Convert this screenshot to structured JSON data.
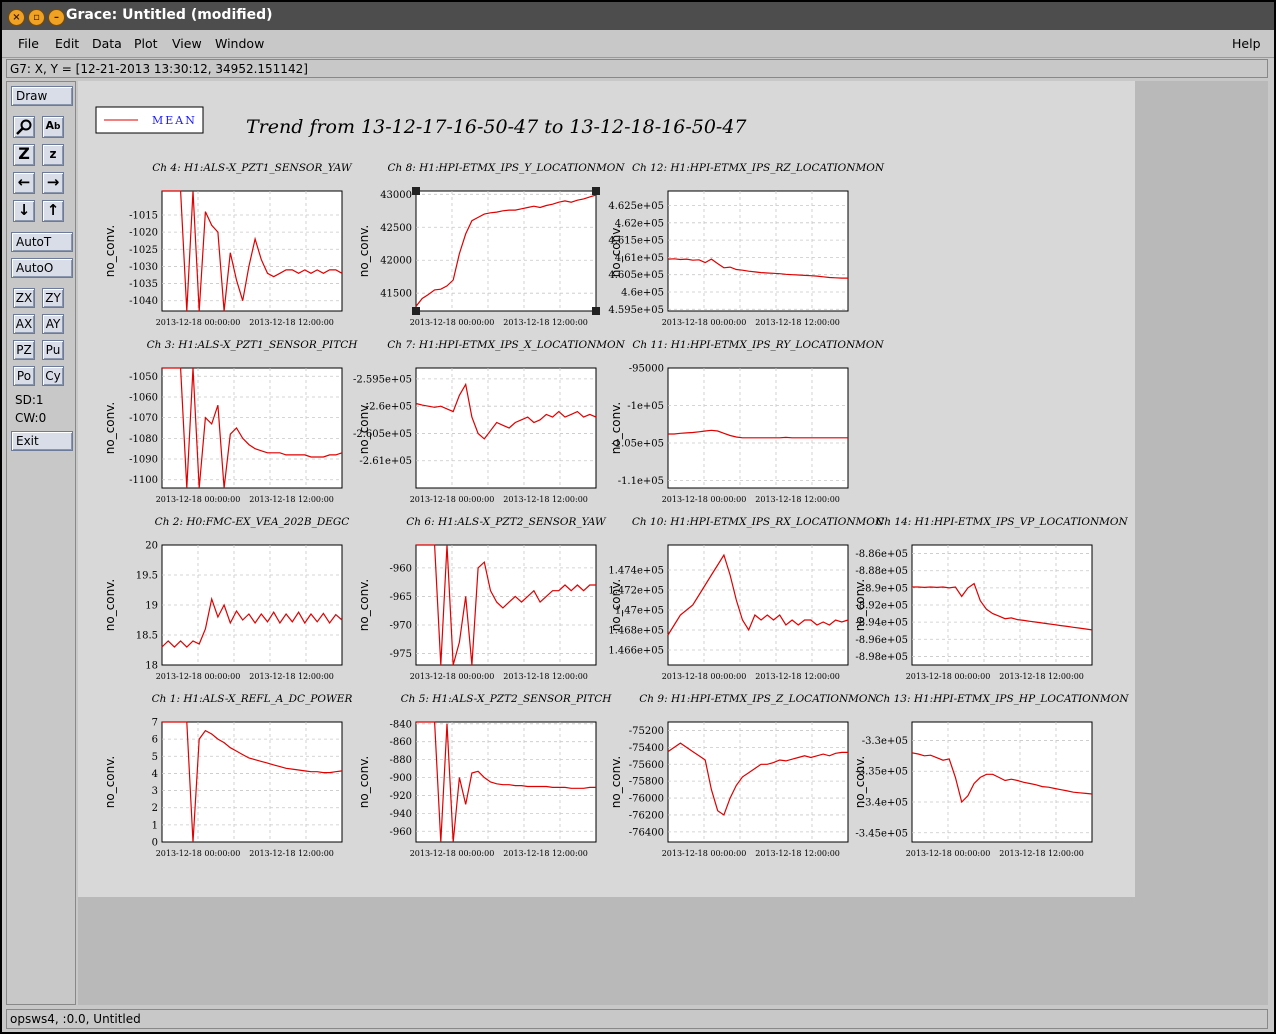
{
  "window": {
    "title": "Grace: Untitled (modified)"
  },
  "menubar": {
    "items": [
      "File",
      "Edit",
      "Data",
      "Plot",
      "View",
      "Window"
    ],
    "help": "Help"
  },
  "locator": {
    "text": "G7: X, Y = [12-21-2013 13:30:12, 34952.151142]"
  },
  "toolbar": {
    "draw": "Draw",
    "icons": [
      "zoom-icon",
      "text-icon",
      "zoom-in-icon",
      "zoom-out-icon",
      "left-arrow-icon",
      "right-arrow-icon",
      "down-arrow-icon",
      "up-arrow-icon"
    ],
    "autot": "AutoT",
    "autoo": "AutoO",
    "pairs": [
      [
        "ZX",
        "ZY"
      ],
      [
        "AX",
        "AY"
      ],
      [
        "PZ",
        "Pu"
      ],
      [
        "Po",
        "Cy"
      ]
    ],
    "sd": "SD:1",
    "cw": "CW:0",
    "exit": "Exit"
  },
  "statusbar": {
    "text": "opsws4, :0.0, Untitled"
  },
  "graph": {
    "title": "Trend from 13-12-17-16-50-47 to 13-12-18-16-50-47",
    "legend": "MEAN",
    "ylabel": "no_conv.",
    "line_color": "#e00000",
    "xticks": [
      "2013-12-18 00:00:00",
      "2013-12-18 12:00:00"
    ]
  },
  "chart_data": [
    {
      "type": "line",
      "title": "Ch 4: H1:ALS-X_PZT1_SENSOR_YAW",
      "ylabel": "no_conv.",
      "ylim": [
        -1043,
        -1008
      ],
      "yticks": [
        "-1015",
        "-1020",
        "-1025",
        "-1030",
        "-1035",
        "-1040"
      ],
      "xticks": [
        "2013-12-18 00:00:00",
        "2013-12-18 12:00:00"
      ],
      "series": [
        {
          "values": [
            -1008,
            -1008,
            -1008,
            -1008,
            -1043,
            -1008,
            -1043,
            -1014,
            -1018,
            -1020,
            -1043,
            -1026,
            -1034,
            -1040,
            -1030,
            -1022,
            -1028,
            -1032,
            -1033,
            -1032,
            -1031,
            -1031,
            -1032,
            -1031,
            -1032,
            -1031,
            -1032,
            -1031,
            -1031,
            -1032
          ]
        }
      ]
    },
    {
      "type": "line",
      "title": "Ch 8: H1:HPI-ETMX_IPS_Y_LOCATIONMON",
      "ylabel": "no_conv.",
      "ylim": [
        41230,
        43050
      ],
      "yticks": [
        "43000",
        "42500",
        "42000",
        "41500"
      ],
      "xticks": [
        "2013-12-18 00:00:00",
        "2013-12-18 12:00:00"
      ],
      "series": [
        {
          "values": [
            41300,
            41420,
            41480,
            41550,
            41560,
            41610,
            41700,
            42100,
            42400,
            42600,
            42650,
            42700,
            42720,
            42730,
            42750,
            42760,
            42760,
            42780,
            42800,
            42820,
            42800,
            42830,
            42850,
            42880,
            42900,
            42880,
            42910,
            42930,
            42960,
            42990
          ]
        }
      ]
    },
    {
      "type": "line",
      "title": "Ch 12: H1:HPI-ETMX_IPS_RZ_LOCATIONMON",
      "ylabel": "no_conv.",
      "ylim": [
        459450,
        462920
      ],
      "yticks": [
        "4.625e+05",
        "4.62e+05",
        "4.615e+05",
        "4.61e+05",
        "4.605e+05",
        "4.6e+05",
        "4.595e+05"
      ],
      "xticks": [
        "2013-12-18 00:00:00",
        "2013-12-18 12:00:00"
      ],
      "series": [
        {
          "values": [
            460950,
            460960,
            460940,
            460950,
            460920,
            460930,
            460850,
            460950,
            460820,
            460700,
            460720,
            460650,
            460630,
            460600,
            460580,
            460560,
            460550,
            460540,
            460530,
            460510,
            460500,
            460490,
            460480,
            460470,
            460460,
            460440,
            460420,
            460410,
            460400,
            460400
          ]
        }
      ]
    },
    {
      "type": "line",
      "title": "Ch 3: H1:ALS-X_PZT1_SENSOR_PITCH",
      "ylabel": "no_conv.",
      "ylim": [
        -1104,
        -1046
      ],
      "yticks": [
        "-1050",
        "-1060",
        "-1070",
        "-1080",
        "-1090",
        "-1100"
      ],
      "xticks": [
        "2013-12-18 00:00:00",
        "2013-12-18 12:00:00"
      ],
      "series": [
        {
          "values": [
            -1046,
            -1046,
            -1046,
            -1046,
            -1104,
            -1046,
            -1104,
            -1070,
            -1073,
            -1064,
            -1104,
            -1078,
            -1075,
            -1080,
            -1083,
            -1085,
            -1086,
            -1087,
            -1087,
            -1087,
            -1088,
            -1088,
            -1088,
            -1088,
            -1089,
            -1089,
            -1089,
            -1088,
            -1088,
            -1087
          ]
        }
      ]
    },
    {
      "type": "line",
      "title": "Ch 7: H1:HPI-ETMX_IPS_X_LOCATIONMON",
      "ylabel": "no_conv.",
      "ylim": [
        -261500,
        -259300
      ],
      "yticks": [
        "-2.595e+05",
        "-2.6e+05",
        "-2.605e+05",
        "-2.61e+05"
      ],
      "xticks": [
        "2013-12-18 00:00:00",
        "2013-12-18 12:00:00"
      ],
      "series": [
        {
          "values": [
            -259950,
            -259980,
            -260000,
            -260020,
            -260000,
            -260050,
            -260100,
            -259800,
            -259600,
            -260200,
            -260500,
            -260600,
            -260450,
            -260300,
            -260350,
            -260400,
            -260300,
            -260250,
            -260200,
            -260300,
            -260250,
            -260150,
            -260200,
            -260100,
            -260200,
            -260150,
            -260100,
            -260200,
            -260150,
            -260200
          ]
        }
      ]
    },
    {
      "type": "line",
      "title": "Ch 11: H1:HPI-ETMX_IPS_RY_LOCATIONMON",
      "ylabel": "no_conv.",
      "ylim": [
        -111000,
        -95000
      ],
      "yticks": [
        "-95000",
        "-1e+05",
        "-1.05e+05",
        "-1.1e+05"
      ],
      "xticks": [
        "2013-12-18 00:00:00",
        "2013-12-18 12:00:00"
      ],
      "series": [
        {
          "values": [
            -103800,
            -103800,
            -103700,
            -103650,
            -103600,
            -103500,
            -103400,
            -103300,
            -103400,
            -103700,
            -104000,
            -104200,
            -104300,
            -104300,
            -104300,
            -104300,
            -104300,
            -104300,
            -104300,
            -104250,
            -104300,
            -104300,
            -104300,
            -104300,
            -104300,
            -104300,
            -104300,
            -104300,
            -104300,
            -104300
          ]
        }
      ]
    },
    {
      "type": "line",
      "title": "Ch 2: H0:FMC-EX_VEA_202B_DEGC",
      "ylabel": "no_conv.",
      "ylim": [
        18,
        20
      ],
      "yticks": [
        "20",
        "19.5",
        "19",
        "18.5",
        "18"
      ],
      "xticks": [
        "2013-12-18 00:00:00",
        "2013-12-18 12:00:00"
      ],
      "series": [
        {
          "values": [
            18.3,
            18.4,
            18.3,
            18.4,
            18.3,
            18.4,
            18.35,
            18.6,
            19.1,
            18.8,
            19.0,
            18.7,
            18.9,
            18.75,
            18.85,
            18.7,
            18.85,
            18.72,
            18.88,
            18.7,
            18.85,
            18.72,
            18.88,
            18.7,
            18.85,
            18.72,
            18.86,
            18.7,
            18.84,
            18.75
          ]
        }
      ]
    },
    {
      "type": "line",
      "title": "Ch 6: H1:ALS-X_PZT2_SENSOR_YAW",
      "ylabel": "no_conv.",
      "ylim": [
        -977,
        -956
      ],
      "yticks": [
        "-960",
        "-965",
        "-970",
        "-975"
      ],
      "xticks": [
        "2013-12-18 00:00:00",
        "2013-12-18 12:00:00"
      ],
      "series": [
        {
          "values": [
            -956,
            -956,
            -956,
            -956,
            -977,
            -956,
            -977,
            -973,
            -965,
            -977,
            -960,
            -959,
            -964,
            -966,
            -967,
            -966,
            -965,
            -966,
            -965,
            -964,
            -966,
            -965,
            -964,
            -964,
            -963,
            -964,
            -963,
            -964,
            -963,
            -963
          ]
        }
      ]
    },
    {
      "type": "line",
      "title": "Ch 10: H1:HPI-ETMX_IPS_RX_LOCATIONMON",
      "ylabel": "no_conv.",
      "ylim": [
        146450,
        147650
      ],
      "yticks": [
        "1.474e+05",
        "1.472e+05",
        "1.47e+05",
        "1.468e+05",
        "1.466e+05"
      ],
      "xticks": [
        "2013-12-18 00:00:00",
        "2013-12-18 12:00:00"
      ],
      "series": [
        {
          "values": [
            146750,
            146850,
            146950,
            147000,
            147050,
            147150,
            147250,
            147350,
            147450,
            147550,
            147350,
            147100,
            146900,
            146800,
            146950,
            146900,
            146950,
            146900,
            146950,
            146850,
            146900,
            146850,
            146900,
            146900,
            146850,
            146880,
            146850,
            146900,
            146880,
            146900
          ]
        }
      ]
    },
    {
      "type": "line",
      "title": "Ch 14: H1:HPI-ETMX_IPS_VP_LOCATIONMON",
      "ylabel": "no_conv.",
      "ylim": [
        -899000,
        -885000
      ],
      "yticks": [
        "-8.86e+05",
        "-8.88e+05",
        "-8.9e+05",
        "-8.92e+05",
        "-8.94e+05",
        "-8.96e+05",
        "-8.98e+05"
      ],
      "xticks": [
        "2013-12-18 00:00:00",
        "2013-12-18 12:00:00"
      ],
      "series": [
        {
          "values": [
            -889900,
            -889900,
            -889950,
            -889900,
            -889950,
            -889900,
            -890000,
            -889900,
            -891000,
            -890000,
            -889500,
            -891500,
            -892500,
            -893000,
            -893300,
            -893600,
            -893500,
            -893700,
            -893800,
            -893900,
            -894000,
            -894100,
            -894200,
            -894300,
            -894400,
            -894500,
            -894600,
            -894700,
            -894800,
            -894900
          ]
        }
      ]
    },
    {
      "type": "line",
      "title": "Ch 1: H1:ALS-X_REFL_A_DC_POWER",
      "ylabel": "no_conv.",
      "ylim": [
        0,
        7
      ],
      "yticks": [
        "7",
        "6",
        "5",
        "4",
        "3",
        "2",
        "1",
        "0"
      ],
      "xticks": [
        "2013-12-18 00:00:00",
        "2013-12-18 12:00:00"
      ],
      "series": [
        {
          "values": [
            7,
            7,
            7,
            7,
            7,
            0,
            6.0,
            6.5,
            6.3,
            6.0,
            5.8,
            5.5,
            5.3,
            5.1,
            4.9,
            4.8,
            4.7,
            4.6,
            4.5,
            4.4,
            4.3,
            4.25,
            4.2,
            4.15,
            4.1,
            4.1,
            4.05,
            4.05,
            4.1,
            4.15
          ]
        }
      ]
    },
    {
      "type": "line",
      "title": "Ch 5: H1:ALS-X_PZT2_SENSOR_PITCH",
      "ylabel": "no_conv.",
      "ylim": [
        -972,
        -838
      ],
      "yticks": [
        "-840",
        "-860",
        "-880",
        "-900",
        "-920",
        "-940",
        "-960"
      ],
      "xticks": [
        "2013-12-18 00:00:00",
        "2013-12-18 12:00:00"
      ],
      "series": [
        {
          "values": [
            -838,
            -838,
            -838,
            -838,
            -972,
            -840,
            -972,
            -900,
            -930,
            -895,
            -893,
            -900,
            -905,
            -907,
            -908,
            -908,
            -909,
            -909,
            -910,
            -910,
            -910,
            -910,
            -911,
            -911,
            -911,
            -912,
            -912,
            -912,
            -911,
            -911
          ]
        }
      ]
    },
    {
      "type": "line",
      "title": "Ch 9: H1:HPI-ETMX_IPS_Z_LOCATIONMON",
      "ylabel": "no_conv.",
      "ylim": [
        -76520,
        -75100
      ],
      "yticks": [
        "-75200",
        "-75400",
        "-75600",
        "-75800",
        "-76000",
        "-76200",
        "-76400"
      ],
      "xticks": [
        "2013-12-18 00:00:00",
        "2013-12-18 12:00:00"
      ],
      "series": [
        {
          "values": [
            -75450,
            -75400,
            -75350,
            -75400,
            -75450,
            -75500,
            -75550,
            -75900,
            -76150,
            -76200,
            -76000,
            -75850,
            -75750,
            -75700,
            -75650,
            -75600,
            -75600,
            -75580,
            -75550,
            -75560,
            -75540,
            -75520,
            -75500,
            -75520,
            -75500,
            -75480,
            -75500,
            -75470,
            -75460,
            -75460
          ]
        }
      ]
    },
    {
      "type": "line",
      "title": "Ch 13: H1:HPI-ETMX_IPS_HP_LOCATIONMON",
      "ylabel": "no_conv.",
      "ylim": [
        -346500,
        -327000
      ],
      "yticks": [
        "-3.3e+05",
        "-3.35e+05",
        "-3.4e+05",
        "-3.45e+05"
      ],
      "xticks": [
        "2013-12-18 00:00:00",
        "2013-12-18 12:00:00"
      ],
      "series": [
        {
          "values": [
            -332000,
            -332200,
            -332500,
            -332400,
            -332800,
            -333200,
            -333000,
            -336000,
            -340000,
            -339000,
            -337000,
            -336000,
            -335500,
            -335500,
            -336000,
            -336500,
            -336300,
            -336500,
            -336800,
            -337000,
            -337200,
            -337500,
            -337600,
            -337800,
            -338000,
            -338200,
            -338400,
            -338500,
            -338600,
            -338700
          ]
        }
      ]
    }
  ]
}
